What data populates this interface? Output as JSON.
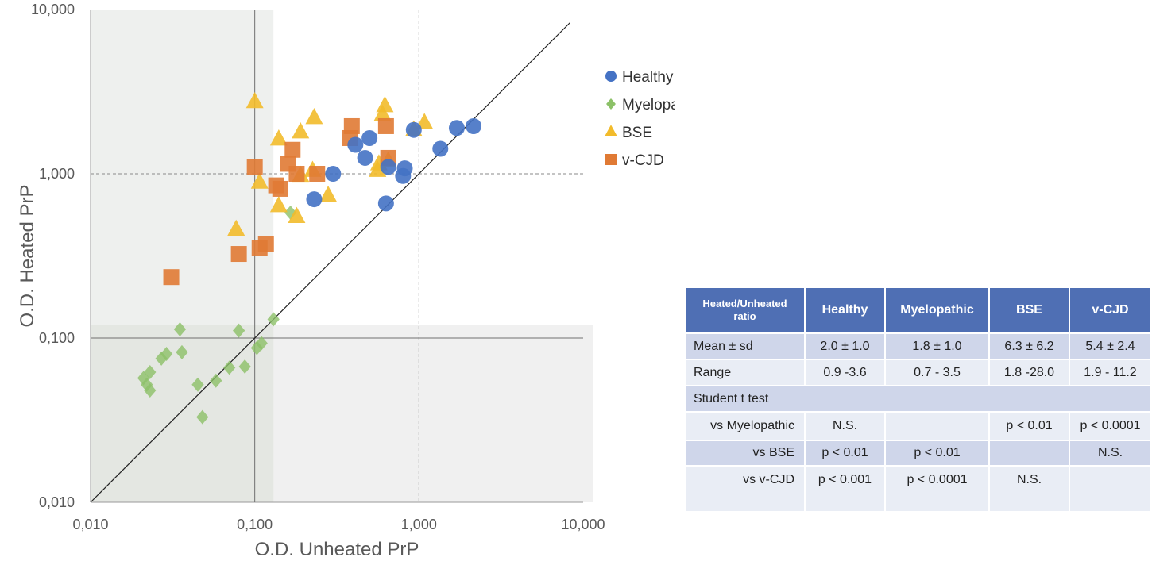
{
  "chart_data": {
    "type": "scatter",
    "xscale": "log",
    "yscale": "log",
    "xlim": [
      0.01,
      10
    ],
    "ylim": [
      0.01,
      10
    ],
    "xlabel": "O.D. Unheated PrP",
    "ylabel": "O.D. Heated PrP",
    "xticks": [
      "0,010",
      "0,100",
      "1,000",
      "10,000"
    ],
    "yticks": [
      "0,010",
      "0,100",
      "1,000",
      "10,000"
    ],
    "legend_position": "right",
    "reference_lines": {
      "vertical_solid": 0.1,
      "vertical_dashed": 1.0,
      "horizontal_solid": 0.1,
      "horizontal_dashed": 1.0,
      "diagonal": "y = x"
    },
    "colors": {
      "Healthy": "#4472c4",
      "Myelopathy": "#8cc168",
      "BSE": "#f2bb2b",
      "v-CJD": "#e07a34"
    },
    "series": [
      {
        "name": "Healthy",
        "marker": "circle",
        "x": [
          0.23,
          0.3,
          0.41,
          0.47,
          0.5,
          0.63,
          0.65,
          0.8,
          0.82,
          0.93,
          1.35,
          1.7,
          2.15
        ],
        "y": [
          0.7,
          1.0,
          1.5,
          1.25,
          1.65,
          0.66,
          1.1,
          0.97,
          1.08,
          1.85,
          1.42,
          1.9,
          1.95
        ]
      },
      {
        "name": "Myelopathy",
        "marker": "diamond",
        "x": [
          0.021,
          0.022,
          0.023,
          0.023,
          0.027,
          0.029,
          0.035,
          0.036,
          0.045,
          0.048,
          0.058,
          0.07,
          0.08,
          0.087,
          0.103,
          0.11,
          0.13,
          0.165
        ],
        "y": [
          0.057,
          0.052,
          0.062,
          0.048,
          0.075,
          0.08,
          0.113,
          0.082,
          0.052,
          0.033,
          0.055,
          0.066,
          0.111,
          0.067,
          0.087,
          0.093,
          0.13,
          0.58
        ]
      },
      {
        "name": "BSE",
        "marker": "triangle",
        "x": [
          0.077,
          0.1,
          0.107,
          0.14,
          0.14,
          0.18,
          0.19,
          0.19,
          0.225,
          0.23,
          0.28,
          0.56,
          0.57,
          0.6,
          0.62,
          0.65,
          0.93,
          1.08
        ],
        "y": [
          0.46,
          2.75,
          0.89,
          1.63,
          0.64,
          0.55,
          0.98,
          1.8,
          1.05,
          2.2,
          0.74,
          1.05,
          1.15,
          2.3,
          2.6,
          1.2,
          1.85,
          2.05
        ]
      },
      {
        "name": "v-CJD",
        "marker": "square",
        "x": [
          0.031,
          0.08,
          0.1,
          0.107,
          0.117,
          0.135,
          0.143,
          0.16,
          0.17,
          0.18,
          0.24,
          0.38,
          0.39,
          0.63,
          0.65
        ],
        "y": [
          0.235,
          0.325,
          1.1,
          0.355,
          0.375,
          0.85,
          0.81,
          1.15,
          1.4,
          1.0,
          1.0,
          1.65,
          1.95,
          1.95,
          1.25
        ]
      }
    ]
  },
  "table": {
    "headers": [
      "Heated/Unheated ratio",
      "Healthy",
      "Myelopathic",
      "BSE",
      "v-CJD"
    ],
    "rows": [
      [
        "Mean ± sd",
        "2.0 ± 1.0",
        "1.8 ± 1.0",
        "6.3 ± 6.2",
        "5.4 ± 2.4"
      ],
      [
        "Range",
        "0.9 -3.6",
        "0.7 - 3.5",
        "1.8 -28.0",
        "1.9 - 11.2"
      ],
      [
        "Student t test",
        "",
        "",
        "",
        ""
      ],
      [
        "vs Myelopathic",
        "N.S.",
        "",
        "p < 0.01",
        "p < 0.0001"
      ],
      [
        "vs BSE",
        "p < 0.01",
        "p < 0.01",
        "",
        "N.S."
      ],
      [
        "vs v-CJD",
        "p < 0.001",
        "p < 0.0001",
        "N.S.",
        ""
      ]
    ]
  }
}
